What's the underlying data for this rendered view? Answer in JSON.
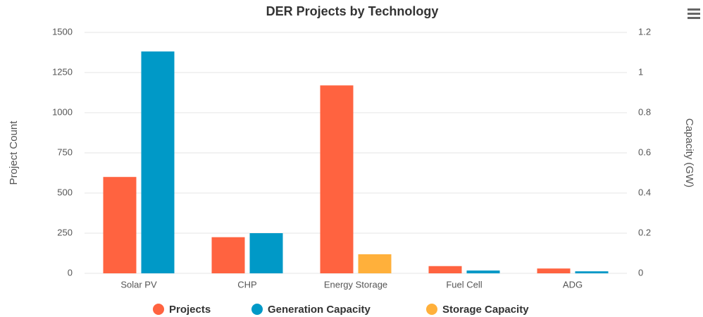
{
  "chart_data": {
    "type": "bar",
    "title": "DER Projects by Technology",
    "categories": [
      "Solar PV",
      "CHP",
      "Energy Storage",
      "Fuel Cell",
      "ADG"
    ],
    "y_label": "Project Count",
    "y2_label": "Capacity (GW)",
    "ylim": [
      0,
      1500
    ],
    "yticks": [
      0,
      250,
      500,
      750,
      1000,
      1250,
      1500
    ],
    "y2lim": [
      0,
      1.2
    ],
    "y2ticks": [
      0,
      0.2,
      0.4,
      0.6,
      0.8,
      1,
      1.2
    ],
    "grid": true,
    "legend": "bottom",
    "series": [
      {
        "name": "Projects",
        "color": "#ff6340",
        "values": [
          600,
          225,
          1170,
          45,
          30
        ]
      },
      {
        "name": "Generation Capacity",
        "color": "#0099c7",
        "axis": "y2",
        "values": [
          1.105,
          0.2,
          null,
          0.014,
          0.01
        ]
      },
      {
        "name": "Storage Capacity",
        "color": "#ffb03b",
        "axis": "y2",
        "values": [
          null,
          null,
          0.095,
          null,
          null
        ]
      }
    ]
  }
}
